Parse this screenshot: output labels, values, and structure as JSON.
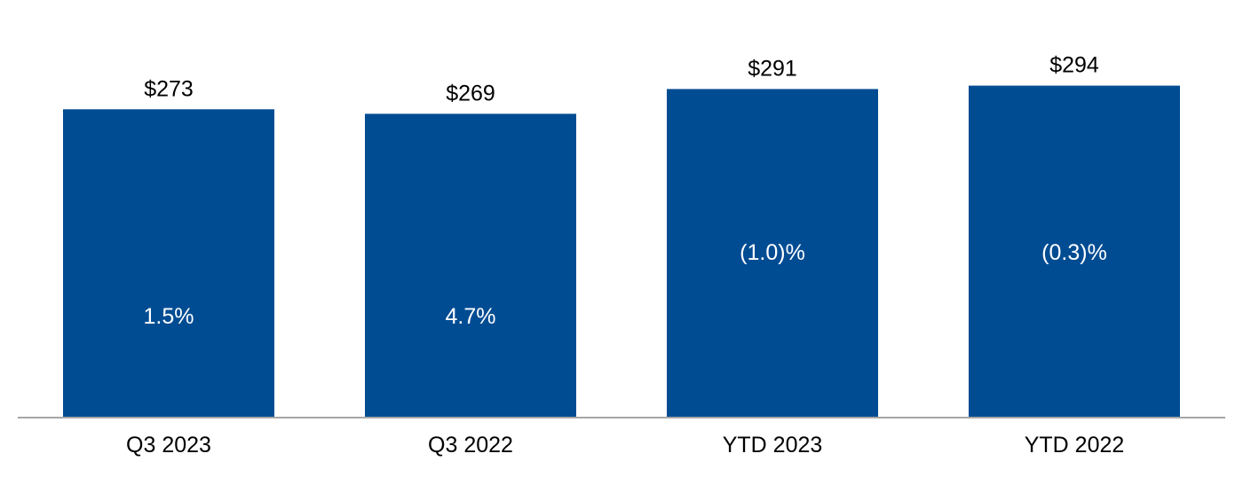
{
  "chart_data": {
    "type": "bar",
    "title": "",
    "xlabel": "",
    "ylabel": "",
    "categories": [
      "Q3 2023",
      "Q3 2022",
      "YTD 2023",
      "YTD 2022"
    ],
    "values": [
      273,
      269,
      291,
      294
    ],
    "value_labels": [
      "$273",
      "$269",
      "$291",
      "$294"
    ],
    "growth": [
      1.5,
      4.7,
      -1.0,
      -0.3
    ],
    "growth_labels": [
      "1.5%",
      "4.7%",
      "(1.0)%",
      "(0.3)%"
    ],
    "ylim": [
      0,
      300
    ],
    "grid": false,
    "legend": "none",
    "colors": {
      "bar": "#004C93",
      "axis": "#A6A6A6",
      "text": "#000000",
      "inner_text": "#FFFFFF"
    }
  }
}
